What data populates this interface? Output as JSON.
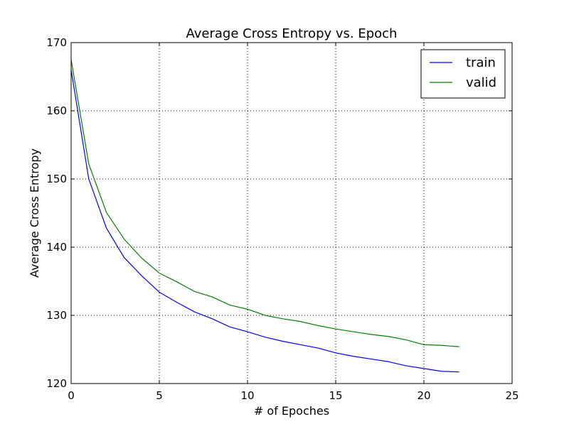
{
  "chart_data": {
    "type": "line",
    "title": "Average Cross Entropy vs. Epoch",
    "xlabel": "# of Epoches",
    "ylabel": "Average Cross Entropy",
    "xlim": [
      0,
      25
    ],
    "ylim": [
      120,
      170
    ],
    "xticks": [
      0,
      5,
      10,
      15,
      20,
      25
    ],
    "yticks": [
      120,
      130,
      140,
      150,
      160,
      170
    ],
    "grid": true,
    "legend_position": "top-right",
    "x": [
      0,
      1,
      2,
      3,
      4,
      5,
      6,
      7,
      8,
      9,
      10,
      11,
      12,
      13,
      14,
      15,
      16,
      17,
      18,
      19,
      20,
      21,
      22
    ],
    "series": [
      {
        "name": "train",
        "color": "#0000ff",
        "values": [
          166.0,
          150.0,
          142.8,
          138.5,
          135.8,
          133.4,
          131.9,
          130.5,
          129.5,
          128.3,
          127.6,
          126.8,
          126.2,
          125.7,
          125.2,
          124.5,
          124.0,
          123.6,
          123.2,
          122.6,
          122.2,
          121.8,
          121.7
        ]
      },
      {
        "name": "valid",
        "color": "#008000",
        "values": [
          167.5,
          152.2,
          145.1,
          141.2,
          138.4,
          136.2,
          134.9,
          133.5,
          132.7,
          131.5,
          130.9,
          130.0,
          129.5,
          129.1,
          128.5,
          128.0,
          127.6,
          127.2,
          126.9,
          126.4,
          125.7,
          125.6,
          125.4
        ]
      }
    ]
  }
}
